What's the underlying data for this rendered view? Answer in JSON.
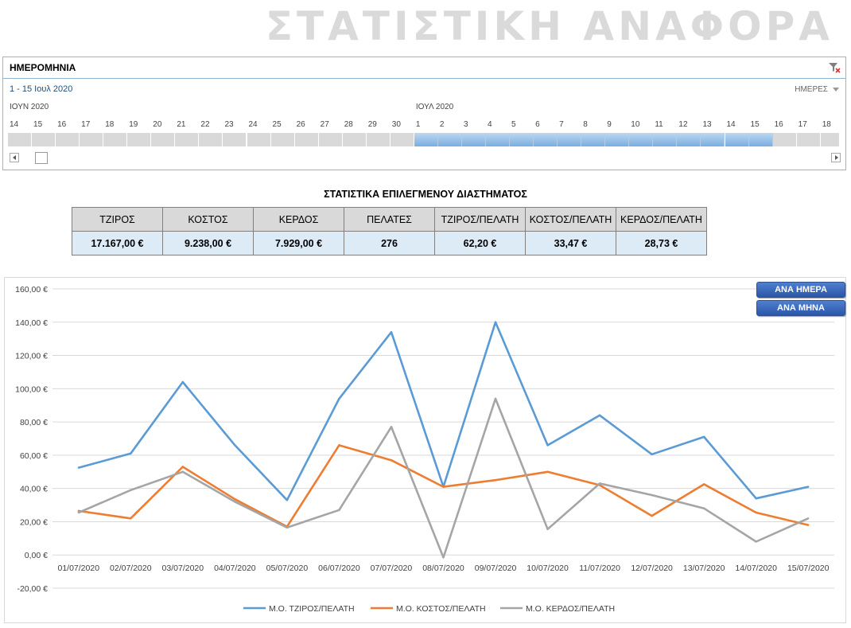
{
  "header": {
    "title": "ΣΤΑΤΙΣΤΙΚΗ ΑΝΑΦΟΡΑ"
  },
  "slicer": {
    "title": "ΗΜΕΡΟΜΗΝΙΑ",
    "selected_range": "1 - 15 Ιουλ 2020",
    "time_level": "ΗΜΕΡΕΣ",
    "month_labels": [
      "ΙΟΥΝ 2020",
      "ΙΟΥΛ 2020"
    ],
    "days": [
      "14",
      "15",
      "16",
      "17",
      "18",
      "19",
      "20",
      "21",
      "22",
      "23",
      "24",
      "25",
      "26",
      "27",
      "28",
      "29",
      "30",
      "1",
      "2",
      "3",
      "4",
      "5",
      "6",
      "7",
      "8",
      "9",
      "10",
      "11",
      "12",
      "13",
      "14",
      "15",
      "16",
      "17",
      "18"
    ],
    "selected_days": {
      "first_index": 17,
      "last_index": 31
    }
  },
  "stats": {
    "title": "ΣΤΑΤΙΣΤΙΚΑ ΕΠΙΛΕΓΜΕΝΟΥ ΔΙΑΣΤΗΜΑΤΟΣ",
    "headers": [
      "ΤΖΙΡΟΣ",
      "ΚΟΣΤΟΣ",
      "ΚΕΡΔΟΣ",
      "ΠΕΛΑΤΕΣ",
      "ΤΖΙΡΟΣ/ΠΕΛΑΤΗ",
      "ΚΟΣΤΟΣ/ΠΕΛΑΤΗ",
      "ΚΕΡΔΟΣ/ΠΕΛΑΤΗ"
    ],
    "values": [
      "17.167,00 €",
      "9.238,00 €",
      "7.929,00 €",
      "276",
      "62,20 €",
      "33,47 €",
      "28,73 €"
    ]
  },
  "buttons": {
    "per_day": "ΑΝΑ ΗΜΕΡΑ",
    "per_month": "ΑΝΑ ΜΗΝΑ"
  },
  "chart_data": {
    "type": "line",
    "title": "",
    "xlabel": "",
    "ylabel": "",
    "categories": [
      "01/07/2020",
      "02/07/2020",
      "03/07/2020",
      "04/07/2020",
      "05/07/2020",
      "06/07/2020",
      "07/07/2020",
      "08/07/2020",
      "09/07/2020",
      "10/07/2020",
      "11/07/2020",
      "12/07/2020",
      "13/07/2020",
      "14/07/2020",
      "15/07/2020"
    ],
    "ylim": [
      -20,
      160
    ],
    "yticks": [
      -20,
      0,
      20,
      40,
      60,
      80,
      100,
      120,
      140,
      160
    ],
    "ytick_labels": [
      "-20,00 €",
      "0,00 €",
      "20,00 €",
      "40,00 €",
      "60,00 €",
      "80,00 €",
      "100,00 €",
      "120,00 €",
      "140,00 €",
      "160,00 €"
    ],
    "grid": true,
    "legend_position": "bottom",
    "series": [
      {
        "name": "Μ.Ο. ΤΖΙΡΟΣ/ΠΕΛΑΤΗ",
        "color": "#5b9bd5",
        "values": [
          52.5,
          61,
          104,
          66,
          33,
          94,
          134,
          41,
          140,
          66,
          84,
          60.5,
          71,
          34,
          41
        ]
      },
      {
        "name": "Μ.Ο. ΚΟΣΤΟΣ/ΠΕΛΑΤΗ",
        "color": "#ed7d31",
        "values": [
          26.5,
          22,
          53,
          33.5,
          17,
          66,
          57,
          41,
          45,
          50,
          42,
          23.5,
          42.5,
          25.5,
          18
        ]
      },
      {
        "name": "Μ.Ο. ΚΕΡΔΟΣ/ΠΕΛΑΤΗ",
        "color": "#a5a5a5",
        "values": [
          25.5,
          39,
          50,
          32,
          16.5,
          27,
          77,
          -1.5,
          94,
          15.5,
          43,
          36,
          28,
          8,
          22
        ]
      }
    ]
  }
}
